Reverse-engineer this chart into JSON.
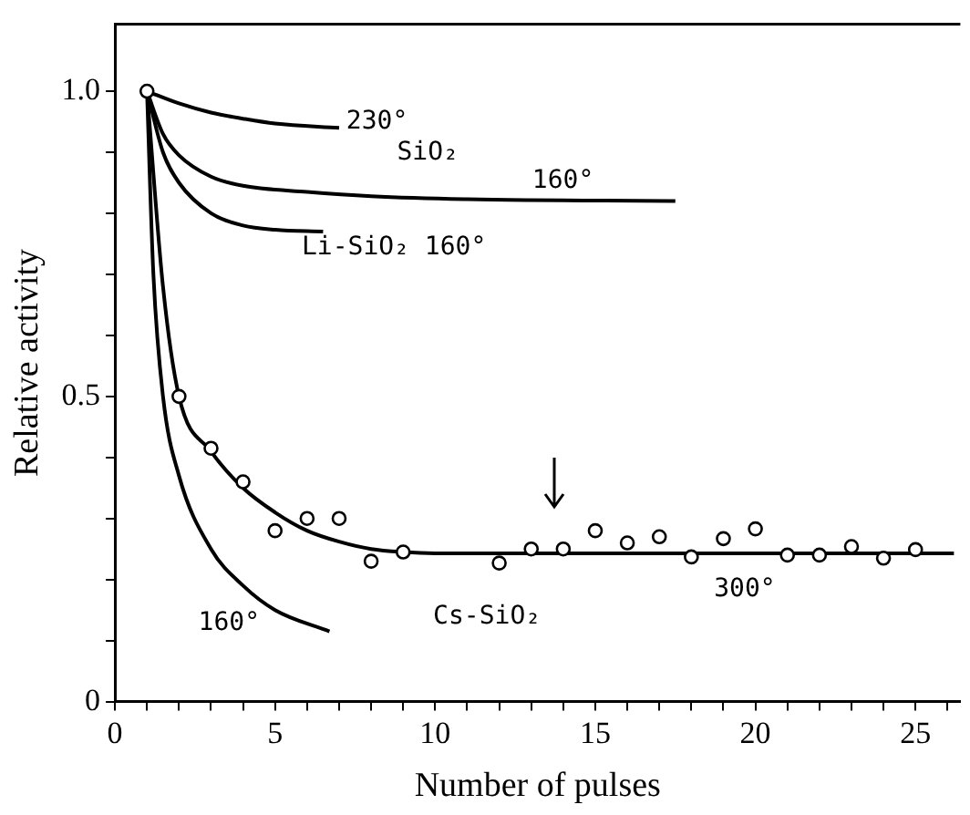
{
  "chart_data": {
    "type": "line",
    "xlabel": "Number of pulses",
    "ylabel": "Relative activity",
    "xlim": [
      0,
      26.4
    ],
    "ylim": [
      0,
      1.11
    ],
    "xticks": [
      0,
      {
        "value": 1,
        "label": null
      },
      {
        "value": 2,
        "label": null
      },
      {
        "value": 3,
        "label": null
      },
      {
        "value": 4,
        "label": null
      },
      5,
      {
        "value": 6,
        "label": null
      },
      {
        "value": 7,
        "label": null
      },
      {
        "value": 8,
        "label": null
      },
      {
        "value": 9,
        "label": null
      },
      10,
      {
        "value": 11,
        "label": null
      },
      {
        "value": 12,
        "label": null
      },
      {
        "value": 13,
        "label": null
      },
      {
        "value": 14,
        "label": null
      },
      15,
      {
        "value": 16,
        "label": null
      },
      {
        "value": 17,
        "label": null
      },
      {
        "value": 18,
        "label": null
      },
      {
        "value": 19,
        "label": null
      },
      20,
      {
        "value": 21,
        "label": null
      },
      {
        "value": 22,
        "label": null
      },
      {
        "value": 23,
        "label": null
      },
      {
        "value": 24,
        "label": null
      },
      25,
      {
        "value": 26,
        "label": null
      }
    ],
    "yticks": [
      0,
      {
        "value": 0.1,
        "label": null
      },
      {
        "value": 0.2,
        "label": null
      },
      {
        "value": 0.3,
        "label": null
      },
      {
        "value": 0.4,
        "label": null
      },
      {
        "value": 0.5,
        "label": "0.5"
      },
      {
        "value": 0.6,
        "label": null
      },
      {
        "value": 0.7,
        "label": null
      },
      {
        "value": 0.8,
        "label": null
      },
      {
        "value": 0.9,
        "label": null
      },
      {
        "value": 1,
        "label": "1.0"
      }
    ],
    "grid": false,
    "legend": false,
    "series": [
      {
        "color": "#000000",
        "marker": "none",
        "x": [
          1,
          2,
          3,
          4,
          5,
          7
        ],
        "values": [
          1,
          0.98,
          0.965,
          0.955,
          0.947,
          0.94
        ]
      },
      {
        "color": "#000000",
        "marker": "none",
        "x": [
          1,
          1.5,
          2,
          3,
          4,
          6,
          8,
          11,
          17.5
        ],
        "values": [
          1,
          0.93,
          0.895,
          0.86,
          0.845,
          0.835,
          0.828,
          0.823,
          0.82
        ]
      },
      {
        "color": "#000000",
        "marker": "none",
        "x": [
          1,
          1.5,
          2,
          3,
          4,
          5,
          6.5
        ],
        "values": [
          1,
          0.9,
          0.85,
          0.8,
          0.78,
          0.773,
          0.77
        ]
      },
      {
        "color": "#000000",
        "marker": "none",
        "x": [
          1,
          1.2,
          1.5,
          2,
          3,
          4,
          5,
          6.7
        ],
        "values": [
          1,
          0.7,
          0.5,
          0.37,
          0.25,
          0.19,
          0.15,
          0.115
        ]
      },
      {
        "color": "#000000",
        "marker": "none",
        "x": [
          1,
          1.5,
          2,
          3,
          4,
          5,
          6,
          7,
          8,
          9,
          10,
          26.2
        ],
        "values": [
          1,
          0.68,
          0.5,
          0.41,
          0.35,
          0.31,
          0.28,
          0.262,
          0.25,
          0.245,
          0.243,
          0.243
        ]
      },
      {
        "type": "scatter",
        "color": "#000000",
        "marker": "circle",
        "x": [
          1,
          2,
          3,
          4,
          5,
          6,
          7,
          8,
          9,
          12,
          13,
          14,
          15,
          16,
          17,
          18,
          19,
          20,
          21,
          22,
          23,
          24,
          25
        ],
        "values": [
          1,
          0.5,
          0.415,
          0.36,
          0.28,
          0.3,
          0.3,
          0.23,
          0.245,
          0.227,
          0.25,
          0.25,
          0.28,
          0.26,
          0.27,
          0.237,
          0.267,
          0.283,
          0.24,
          0.24,
          0.254,
          0.235,
          0.249
        ]
      }
    ],
    "annotations": [
      "230°",
      "SiO₂",
      "160°",
      "Li-SiO₂ 160°",
      "160°",
      "Cs-SiO₂",
      "300°"
    ]
  }
}
